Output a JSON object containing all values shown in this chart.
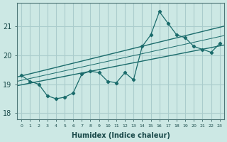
{
  "xlabel": "Humidex (Indice chaleur)",
  "bg_color": "#cce8e4",
  "grid_color": "#aacccc",
  "line_color": "#1a6b6b",
  "x_values": [
    0,
    1,
    2,
    3,
    4,
    5,
    6,
    7,
    8,
    9,
    10,
    11,
    12,
    13,
    14,
    15,
    16,
    17,
    18,
    19,
    20,
    21,
    22,
    23
  ],
  "y_main": [
    19.3,
    19.1,
    19.0,
    18.6,
    18.5,
    18.55,
    18.7,
    19.35,
    19.45,
    19.4,
    19.1,
    19.05,
    19.4,
    19.15,
    20.3,
    20.7,
    21.5,
    21.1,
    20.7,
    20.6,
    20.3,
    20.2,
    20.1,
    20.4
  ],
  "ylim": [
    17.8,
    21.8
  ],
  "yticks": [
    18,
    19,
    20,
    21
  ],
  "xlim": [
    -0.5,
    23.5
  ],
  "trend_upper_start": 19.25,
  "trend_upper_end": 21.0,
  "trend_lower_start": 18.95,
  "trend_lower_end": 20.35
}
